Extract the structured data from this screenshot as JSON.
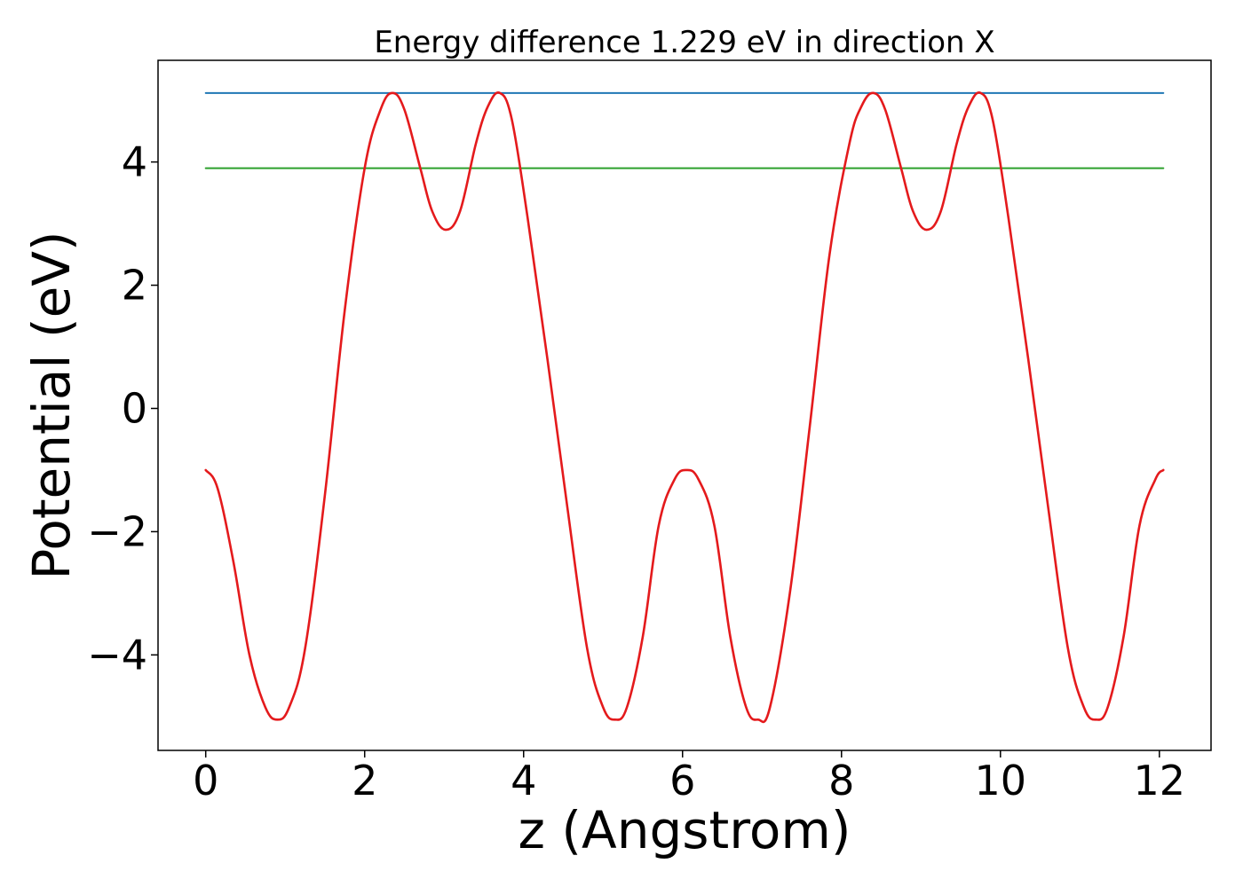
{
  "chart_data": {
    "type": "line",
    "title": "Energy difference 1.229 eV in direction X",
    "xlabel": "z (Angstrom)",
    "ylabel": "Potential (eV)",
    "xlim": [
      -0.6,
      12.65
    ],
    "ylim": [
      -5.55,
      5.65
    ],
    "xticks": [
      0,
      2,
      4,
      6,
      8,
      10,
      12
    ],
    "xtick_labels": [
      "0",
      "2",
      "4",
      "6",
      "8",
      "10",
      "12"
    ],
    "yticks": [
      -4,
      -2,
      0,
      2,
      4
    ],
    "ytick_labels": [
      "−4",
      "−2",
      "0",
      "2",
      "4"
    ],
    "grid": false,
    "legend": false,
    "colors": {
      "potential": "#e41a1c",
      "upper_level": "#1f77b4",
      "lower_level": "#2ca02c",
      "axes": "#000000"
    },
    "series": [
      {
        "key": "upper_level",
        "x": [
          0,
          12.05
        ],
        "y": [
          5.12,
          5.12
        ]
      },
      {
        "key": "lower_level",
        "x": [
          0,
          12.05
        ],
        "y": [
          3.9,
          3.9
        ]
      },
      {
        "key": "potential",
        "x": [
          0,
          0.15,
          0.35,
          0.55,
          0.75,
          0.9,
          1.05,
          1.25,
          1.5,
          1.75,
          2.0,
          2.2,
          2.35,
          2.5,
          2.7,
          2.85,
          3.02,
          3.2,
          3.4,
          3.55,
          3.7,
          3.85,
          4.05,
          4.3,
          4.55,
          4.8,
          5.0,
          5.15,
          5.3,
          5.5,
          5.7,
          5.9,
          6.05,
          6.2,
          6.4,
          6.6,
          6.8,
          6.95,
          7.1,
          7.35,
          7.6,
          7.85,
          8.1,
          8.25,
          8.4,
          8.55,
          8.75,
          8.9,
          9.07,
          9.25,
          9.45,
          9.6,
          9.75,
          9.9,
          10.1,
          10.35,
          10.6,
          10.85,
          11.05,
          11.2,
          11.35,
          11.55,
          11.75,
          11.95,
          12.05
        ],
        "y": [
          -1.0,
          -1.3,
          -2.5,
          -4.0,
          -4.85,
          -5.05,
          -4.85,
          -3.9,
          -1.4,
          1.6,
          3.9,
          4.85,
          5.12,
          4.85,
          3.9,
          3.2,
          2.9,
          3.2,
          4.3,
          4.9,
          5.12,
          4.7,
          3.1,
          0.8,
          -1.6,
          -3.9,
          -4.85,
          -5.05,
          -4.85,
          -3.7,
          -1.9,
          -1.15,
          -1.0,
          -1.15,
          -1.9,
          -3.7,
          -4.85,
          -5.05,
          -4.85,
          -3.0,
          -0.3,
          2.5,
          4.3,
          4.9,
          5.12,
          4.85,
          3.9,
          3.2,
          2.9,
          3.2,
          4.3,
          4.9,
          5.12,
          4.7,
          3.1,
          0.8,
          -1.6,
          -3.9,
          -4.85,
          -5.05,
          -4.85,
          -3.7,
          -1.9,
          -1.15,
          -1.0
        ]
      }
    ]
  }
}
